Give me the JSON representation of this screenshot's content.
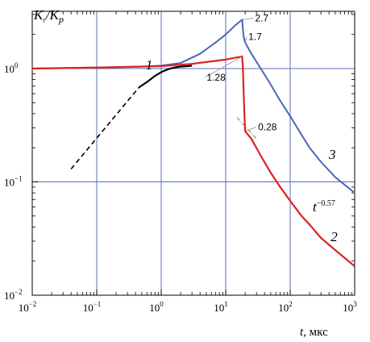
{
  "chart_data": {
    "type": "line",
    "xlabel_var": "t",
    "xlabel_unit": ", мкс",
    "ylabel_num": "K",
    "ylabel_num_sub": "r",
    "ylabel_sep": "/",
    "ylabel_den": "K",
    "ylabel_den_sub": "p",
    "x_scale": "log",
    "y_scale": "log",
    "xlim": [
      0.01,
      1000
    ],
    "ylim": [
      0.01,
      3.2
    ],
    "grid": true,
    "x_ticks": [
      {
        "value": 0.01,
        "base": "10",
        "exp": "−2"
      },
      {
        "value": 0.1,
        "base": "10",
        "exp": "−1"
      },
      {
        "value": 1,
        "base": "10",
        "exp": "0"
      },
      {
        "value": 10,
        "base": "10",
        "exp": "1"
      },
      {
        "value": 100,
        "base": "10",
        "exp": "2"
      },
      {
        "value": 1000,
        "base": "10",
        "exp": "3"
      }
    ],
    "y_ticks": [
      {
        "value": 0.01,
        "base": "10",
        "exp": "−2"
      },
      {
        "value": 0.1,
        "base": "10",
        "exp": "−1"
      },
      {
        "value": 1,
        "base": "10",
        "exp": "0"
      }
    ],
    "series": [
      {
        "name": "1",
        "color": "#000000",
        "x": [
          0.45,
          0.6,
          0.8,
          1.0,
          1.3,
          1.6,
          2.0,
          2.5,
          3.0
        ],
        "y": [
          0.68,
          0.76,
          0.86,
          0.93,
          0.99,
          1.02,
          1.04,
          1.05,
          1.06
        ],
        "dashed_extension": {
          "x": [
            0.04,
            0.45
          ],
          "y": [
            0.13,
            0.68
          ]
        }
      },
      {
        "name": "2",
        "color": "#dd2222",
        "x": [
          0.01,
          0.1,
          1,
          3,
          10,
          18,
          18.5,
          19,
          19.5,
          20,
          25,
          35,
          50,
          70,
          100,
          150,
          200,
          300,
          500,
          1000
        ],
        "y": [
          1.0,
          1.02,
          1.05,
          1.1,
          1.2,
          1.28,
          1.0,
          0.6,
          0.4,
          0.28,
          0.24,
          0.17,
          0.12,
          0.09,
          0.068,
          0.05,
          0.042,
          0.032,
          0.025,
          0.018
        ]
      },
      {
        "name": "3",
        "color": "#4a66b8",
        "x": [
          0.01,
          0.1,
          0.5,
          1,
          2,
          4,
          7,
          10,
          14,
          18,
          18.5,
          19,
          20,
          25,
          35,
          50,
          70,
          100,
          150,
          200,
          300,
          500,
          1000
        ],
        "y": [
          1.0,
          1.02,
          1.04,
          1.06,
          1.12,
          1.35,
          1.7,
          2.0,
          2.4,
          2.7,
          2.2,
          1.9,
          1.7,
          1.35,
          1.0,
          0.72,
          0.52,
          0.38,
          0.26,
          0.2,
          0.15,
          0.11,
          0.08
        ]
      }
    ],
    "fit_line": {
      "label_base": "t",
      "label_exp": "−0.57",
      "x": [
        15,
        30
      ],
      "y": [
        0.37,
        0.24
      ],
      "color": "#777777"
    },
    "annotations": [
      {
        "text": "2.7",
        "x": 18,
        "y": 2.7
      },
      {
        "text": "1.7",
        "x": 20,
        "y": 1.7
      },
      {
        "text": "1.28",
        "x": 18,
        "y": 1.28
      },
      {
        "text": "0.28",
        "x": 20,
        "y": 0.28
      }
    ]
  }
}
